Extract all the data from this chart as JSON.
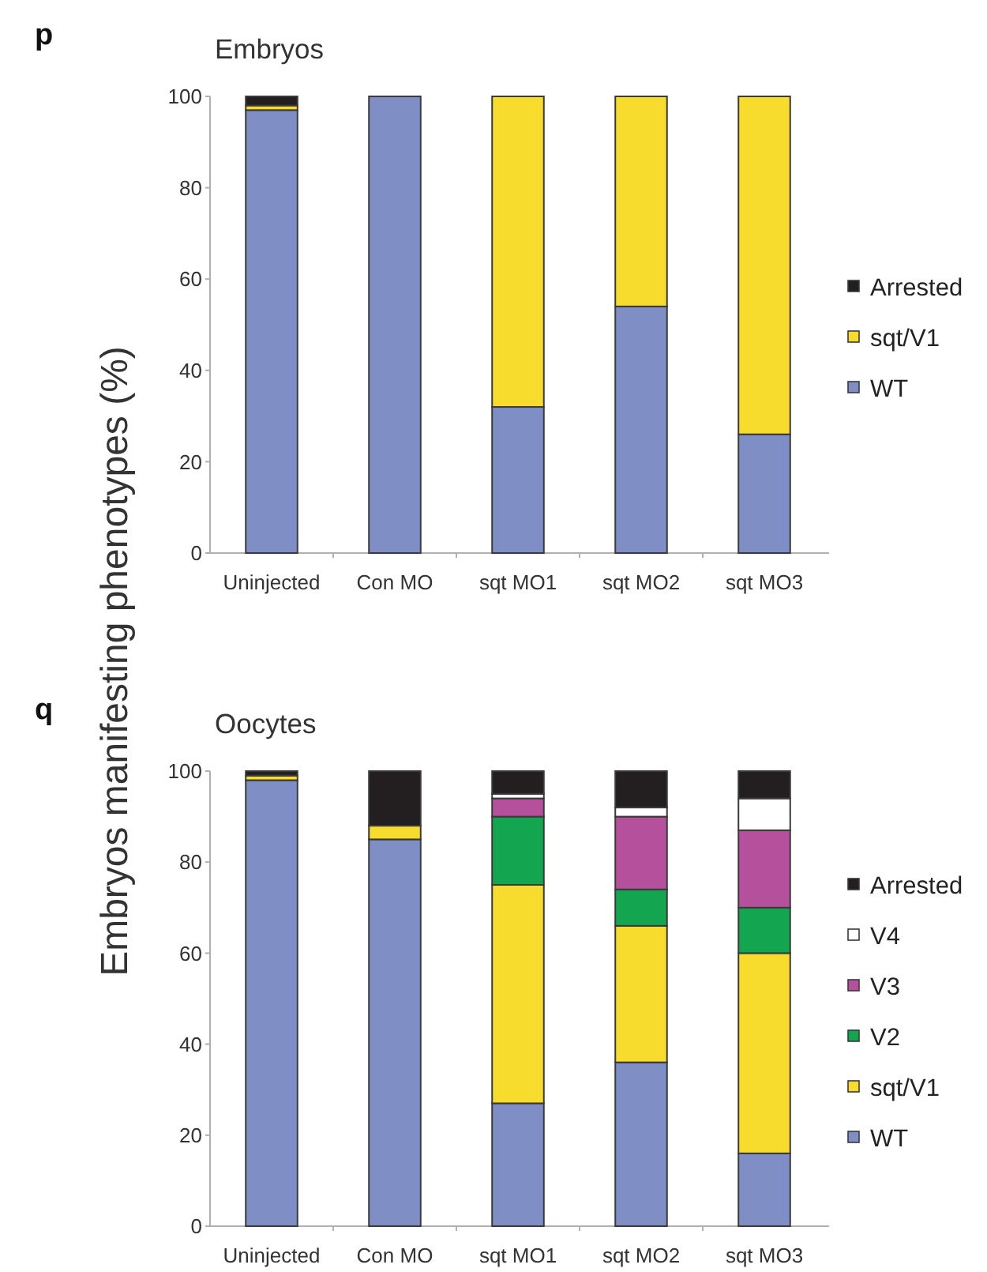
{
  "chart_data": [
    {
      "type": "bar",
      "stacked": true,
      "title": "Embryos",
      "ylabel": "Embryos manifesting phenotypes (%)",
      "annotations": [
        "p"
      ],
      "categories": [
        "Uninjected",
        "Con MO",
        "sqt MO1",
        "sqt MO2",
        "sqt MO3"
      ],
      "series": [
        {
          "name": "WT",
          "color": "#7f8fc6",
          "values": [
            97,
            100,
            32,
            54,
            26
          ]
        },
        {
          "name": "sqt/V1",
          "color": "#f7dc2e",
          "values": [
            1,
            0,
            68,
            46,
            74
          ]
        },
        {
          "name": "Arrested",
          "color": "#231f20",
          "values": [
            2,
            0,
            0,
            0,
            0
          ]
        }
      ],
      "ylim": [
        0,
        100
      ],
      "yticks": [
        0,
        20,
        40,
        60,
        80,
        100
      ],
      "legend": "right"
    },
    {
      "type": "bar",
      "stacked": true,
      "title": "Oocytes",
      "annotations": [
        "q"
      ],
      "categories": [
        "Uninjected",
        "Con MO",
        "sqt MO1",
        "sqt MO2",
        "sqt MO3"
      ],
      "series": [
        {
          "name": "WT",
          "color": "#7f8fc6",
          "values": [
            98,
            85,
            27,
            36,
            16
          ]
        },
        {
          "name": "sqt/V1",
          "color": "#f7dc2e",
          "values": [
            1,
            3,
            48,
            30,
            44
          ]
        },
        {
          "name": "V2",
          "color": "#14a550",
          "values": [
            0,
            0,
            15,
            8,
            10
          ]
        },
        {
          "name": "V3",
          "color": "#b5509c",
          "values": [
            0,
            0,
            4,
            16,
            17
          ]
        },
        {
          "name": "V4",
          "color": "#ffffff",
          "values": [
            0,
            0,
            1,
            2,
            7
          ]
        },
        {
          "name": "Arrested",
          "color": "#231f20",
          "values": [
            1,
            12,
            5,
            8,
            6
          ]
        }
      ],
      "ylim": [
        0,
        100
      ],
      "yticks": [
        0,
        20,
        40,
        60,
        80,
        100
      ],
      "legend": "right"
    }
  ]
}
